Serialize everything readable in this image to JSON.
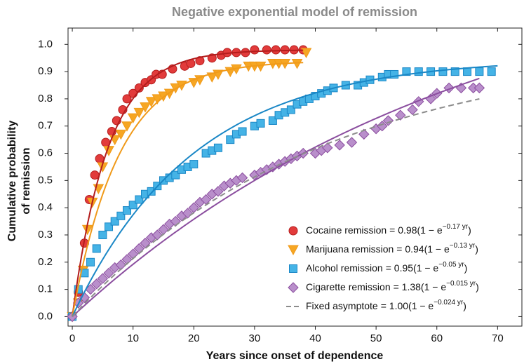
{
  "chart_data": {
    "type": "scatter",
    "title": "Negative exponential model of remission",
    "xlabel": "Years since onset of dependence",
    "ylabel": [
      "Cumulative probability",
      "of remission"
    ],
    "xlim": [
      -0.7,
      74
    ],
    "ylim": [
      -0.035,
      1.06
    ],
    "xticks": [
      0,
      10,
      20,
      30,
      40,
      50,
      60,
      70
    ],
    "yticks": [
      {
        "value": 0,
        "label": "0.0"
      },
      0.1,
      0.2,
      0.3,
      0.4,
      0.5,
      0.6,
      0.7,
      0.8,
      0.9,
      {
        "value": 1,
        "label": "1.0"
      }
    ],
    "legend": "lower right",
    "series": [
      {
        "name": "Cocaine remission",
        "formula": {
          "prefix": "= 0.98(1 − e",
          "exponent": "−0.17 yr",
          "suffix": ")"
        },
        "color": "#e23b3b",
        "line_color": "#b31d1d",
        "marker": "circle",
        "fit": {
          "a": 0.98,
          "k": 0.17,
          "xmax": 38
        },
        "x": [
          0,
          1,
          2,
          2.8,
          3.7,
          4.5,
          5.5,
          6.5,
          7.3,
          8.3,
          9,
          10,
          11,
          12,
          13,
          13.8,
          14.8,
          16.5,
          18.5,
          19.5,
          21,
          23,
          24.5,
          25.5,
          27,
          28.5,
          30,
          32,
          33.5,
          35,
          36.5,
          38
        ],
        "values": [
          0,
          0.09,
          0.27,
          0.43,
          0.52,
          0.58,
          0.64,
          0.68,
          0.72,
          0.76,
          0.8,
          0.82,
          0.84,
          0.86,
          0.87,
          0.89,
          0.89,
          0.91,
          0.92,
          0.93,
          0.94,
          0.95,
          0.96,
          0.97,
          0.97,
          0.97,
          0.98,
          0.98,
          0.98,
          0.98,
          0.98,
          0.98
        ]
      },
      {
        "name": "Marijuana remission",
        "formula": {
          "prefix": "= 0.94(1 − e",
          "exponent": "−0.13 yr",
          "suffix": ")"
        },
        "color": "#f6a623",
        "line_color": "#f09a1a",
        "marker": "triangle",
        "fit": {
          "a": 0.94,
          "k": 0.13,
          "xmax": 38
        },
        "x": [
          0,
          1,
          1.8,
          2.5,
          3.3,
          4.3,
          5,
          6,
          7,
          8,
          9,
          10,
          11,
          12,
          13,
          14,
          15,
          16,
          17,
          18,
          20,
          21,
          23,
          24,
          26,
          27,
          29,
          30,
          31,
          33,
          34,
          35,
          37,
          38.5
        ],
        "values": [
          0,
          0.05,
          0.17,
          0.32,
          0.42,
          0.47,
          0.55,
          0.61,
          0.65,
          0.67,
          0.7,
          0.73,
          0.75,
          0.77,
          0.79,
          0.8,
          0.81,
          0.82,
          0.84,
          0.85,
          0.86,
          0.87,
          0.88,
          0.89,
          0.9,
          0.91,
          0.92,
          0.92,
          0.92,
          0.93,
          0.93,
          0.93,
          0.93,
          0.97
        ]
      },
      {
        "name": "Alcohol remission",
        "formula": {
          "prefix": "= 0.95(1 − e",
          "exponent": "−0.05 yr",
          "suffix": ")"
        },
        "color": "#45b3e6",
        "line_color": "#1a87c6",
        "marker": "square",
        "fit": {
          "a": 0.95,
          "k": 0.05,
          "xmax": 70
        },
        "x": [
          0,
          1,
          2,
          3,
          4,
          5,
          6,
          7,
          8,
          9,
          10,
          11,
          12,
          13,
          14,
          15,
          16,
          17,
          18,
          19,
          20,
          22,
          23,
          24,
          26,
          27,
          28,
          30,
          31,
          33,
          34,
          35,
          36,
          37,
          38,
          39,
          40,
          41,
          42,
          43,
          45,
          47,
          48,
          49,
          51,
          52,
          53,
          55,
          57,
          59,
          61,
          63,
          65,
          67,
          69
        ],
        "values": [
          0,
          0.1,
          0.16,
          0.2,
          0.25,
          0.3,
          0.33,
          0.35,
          0.37,
          0.39,
          0.41,
          0.43,
          0.45,
          0.46,
          0.48,
          0.5,
          0.51,
          0.52,
          0.54,
          0.55,
          0.56,
          0.6,
          0.61,
          0.62,
          0.65,
          0.67,
          0.68,
          0.7,
          0.71,
          0.72,
          0.74,
          0.75,
          0.76,
          0.78,
          0.79,
          0.8,
          0.81,
          0.82,
          0.83,
          0.84,
          0.85,
          0.85,
          0.86,
          0.87,
          0.88,
          0.89,
          0.89,
          0.9,
          0.9,
          0.9,
          0.9,
          0.9,
          0.9,
          0.9,
          0.9
        ]
      },
      {
        "name": "Cigarette remission",
        "formula": {
          "prefix": "= 1.38(1 − e",
          "exponent": "−0.015 yr",
          "suffix": ")"
        },
        "color": "#b98fcb",
        "line_color": "#8b4e9f",
        "marker": "diamond",
        "fit": {
          "a": 1.38,
          "k": 0.015,
          "xmax": 67
        },
        "x": [
          0,
          1,
          2,
          3,
          4,
          5,
          6,
          7,
          8,
          9,
          10,
          11,
          12,
          13,
          14,
          15,
          16,
          17,
          18,
          19,
          20,
          21,
          22,
          23,
          24,
          25,
          26,
          27,
          28,
          30,
          31,
          32,
          33,
          34,
          35,
          36,
          37,
          38,
          40,
          41,
          42,
          44,
          46,
          48,
          50,
          51,
          52,
          54,
          56,
          57,
          59,
          60,
          62,
          64,
          66,
          67
        ],
        "values": [
          0,
          0.05,
          0.07,
          0.1,
          0.12,
          0.14,
          0.16,
          0.18,
          0.19,
          0.21,
          0.23,
          0.25,
          0.27,
          0.29,
          0.3,
          0.32,
          0.34,
          0.35,
          0.37,
          0.38,
          0.4,
          0.42,
          0.43,
          0.45,
          0.46,
          0.48,
          0.49,
          0.5,
          0.51,
          0.52,
          0.53,
          0.54,
          0.55,
          0.56,
          0.57,
          0.58,
          0.59,
          0.6,
          0.6,
          0.61,
          0.62,
          0.63,
          0.64,
          0.67,
          0.69,
          0.7,
          0.72,
          0.74,
          0.76,
          0.79,
          0.8,
          0.82,
          0.84,
          0.84,
          0.84,
          0.84
        ]
      },
      {
        "name": "Fixed asymptote",
        "formula": {
          "prefix": "= 1.00(1 − e",
          "exponent": "−0.024 yr",
          "suffix": ")"
        },
        "color": "#8c8c8c",
        "line_color": "#8c8c8c",
        "marker": "dash",
        "dashed": true,
        "fit": {
          "a": 1.0,
          "k": 0.024,
          "xmax": 67
        }
      }
    ]
  }
}
